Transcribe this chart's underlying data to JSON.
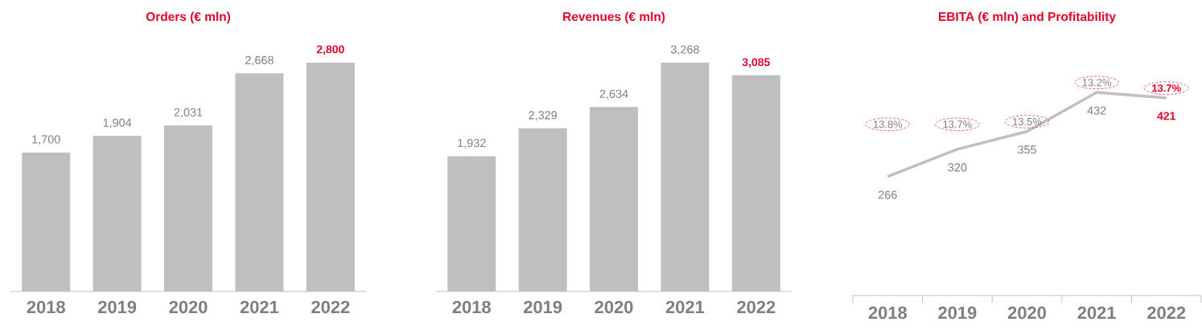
{
  "chart_data": [
    {
      "type": "bar",
      "title": "Orders (€ mln)",
      "categories": [
        "2018",
        "2019",
        "2020",
        "2021",
        "2022"
      ],
      "values": [
        1700,
        1904,
        2031,
        2668,
        2800
      ],
      "value_labels": [
        "1,700",
        "1,904",
        "2,031",
        "2,668",
        "2,800"
      ],
      "color": "#bfbfbf"
    },
    {
      "type": "bar",
      "title": "Revenues (€ mln)",
      "categories": [
        "2018",
        "2019",
        "2020",
        "2021",
        "2022"
      ],
      "values": [
        1932,
        2329,
        2634,
        3268,
        3085
      ],
      "value_labels": [
        "1,932",
        "2,329",
        "2,634",
        "3,268",
        "3,085"
      ],
      "color": "#bfbfbf"
    },
    {
      "type": "line",
      "title": "EBITA (€ mln) and Profitability",
      "categories": [
        "2018",
        "2019",
        "2020",
        "2021",
        "2022"
      ],
      "values": [
        266,
        320,
        355,
        432,
        421
      ],
      "value_labels": [
        "266",
        "320",
        "355",
        "432",
        "421"
      ],
      "color": "#bfbfbf",
      "marker": "none",
      "annotations": [
        "13.8%",
        "13.7%",
        "13.5%",
        "13.2%",
        "13.7%"
      ]
    }
  ]
}
